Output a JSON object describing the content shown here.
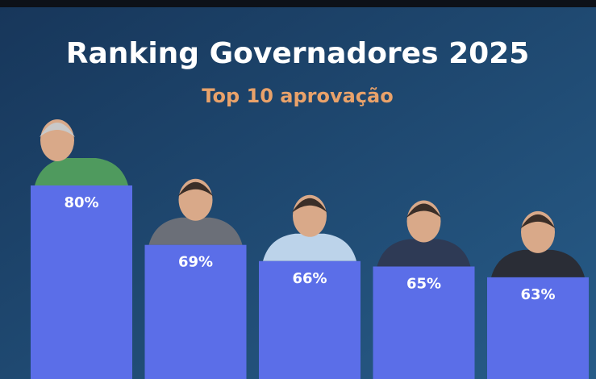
{
  "chart_data": {
    "type": "bar",
    "title": "Ranking Governadores 2025",
    "subtitle": "Top 10 aprovação",
    "categories": [
      null,
      null,
      null,
      null,
      null
    ],
    "values": [
      80,
      69,
      66,
      65,
      63
    ],
    "value_labels": [
      "80%",
      "69%",
      "66%",
      "65%",
      "63%"
    ],
    "color": "#5b6ee8"
  }
}
